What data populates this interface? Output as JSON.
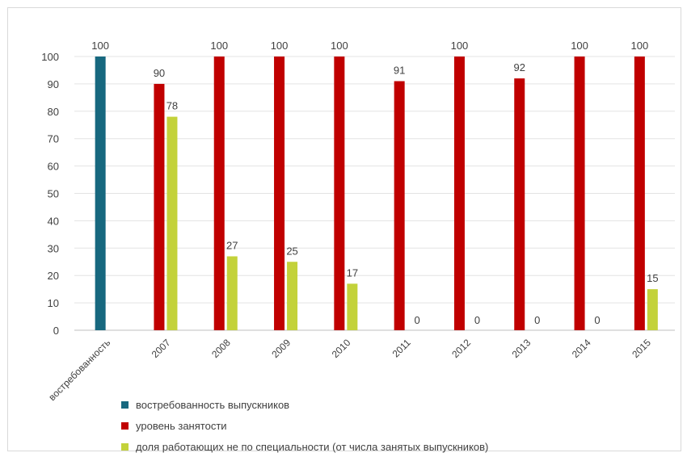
{
  "chart_data": {
    "type": "bar",
    "categories": [
      "востребованность",
      "2007",
      "2008",
      "2009",
      "2010",
      "2011",
      "2012",
      "2013",
      "2014",
      "2015"
    ],
    "series": [
      {
        "name": "востребованность выпускников",
        "color": "#17687f",
        "values": [
          100,
          null,
          null,
          null,
          null,
          null,
          null,
          null,
          null,
          null
        ]
      },
      {
        "name": "уровень занятости",
        "color": "#c00000",
        "values": [
          null,
          90,
          100,
          100,
          100,
          91,
          100,
          92,
          100,
          100
        ]
      },
      {
        "name": "доля работающих не по специальности (от числа занятых выпускников)",
        "color": "#c3d23a",
        "values": [
          null,
          78,
          27,
          25,
          17,
          0,
          0,
          0,
          0,
          15
        ]
      }
    ],
    "ylim": [
      0,
      100
    ],
    "yticks": [
      0,
      10,
      20,
      30,
      40,
      50,
      60,
      70,
      80,
      90,
      100
    ],
    "grid": true,
    "legend_position": "bottom"
  }
}
